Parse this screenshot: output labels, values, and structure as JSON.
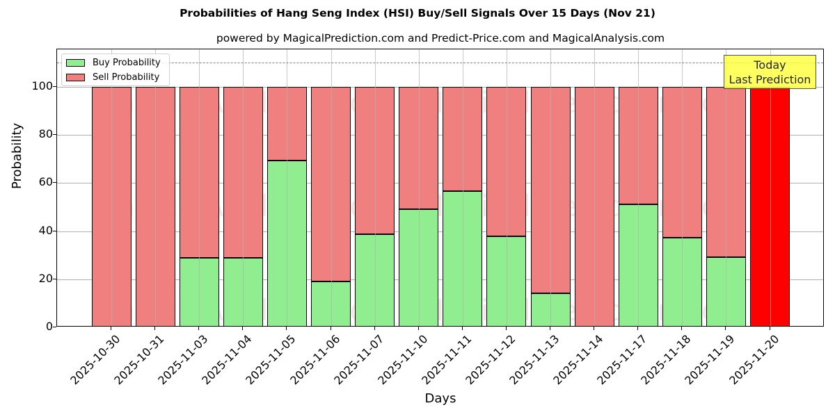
{
  "header": {
    "title": "Probabilities of Hang Seng Index (HSI) Buy/Sell Signals Over 15 Days (Nov 21)",
    "subtitle": "powered by MagicalPrediction.com and Predict-Price.com and MagicalAnalysis.com"
  },
  "legend": {
    "buy_label": "Buy Probability",
    "sell_label": "Sell Probability"
  },
  "annotation": {
    "line1": "Today",
    "line2": "Last Prediction"
  },
  "watermarks": [
    "MagicalAnalysis.com",
    "MagicalPrediction.com"
  ],
  "colors": {
    "buy": "#90ee90",
    "sell": "#f08080",
    "today_sell": "#ff0000",
    "annotation_bg": "#ffff44",
    "threshold_line": "#808080"
  },
  "chart_data": {
    "type": "bar",
    "stacked": true,
    "title": "Probabilities of Hang Seng Index (HSI) Buy/Sell Signals Over 15 Days (Nov 21)",
    "subtitle": "powered by MagicalPrediction.com and Predict-Price.com and MagicalAnalysis.com",
    "xlabel": "Days",
    "ylabel": "Probability",
    "ylim": [
      0,
      115
    ],
    "yticks": [
      0,
      20,
      40,
      60,
      80,
      100
    ],
    "grid": true,
    "legend_position": "upper left",
    "threshold_line": {
      "y": 110,
      "style": "dashed"
    },
    "categories": [
      "2025-10-30",
      "2025-10-31",
      "2025-11-03",
      "2025-11-04",
      "2025-11-05",
      "2025-11-06",
      "2025-11-07",
      "2025-11-10",
      "2025-11-11",
      "2025-11-12",
      "2025-11-13",
      "2025-11-14",
      "2025-11-17",
      "2025-11-18",
      "2025-11-19",
      "2025-11-20"
    ],
    "series": [
      {
        "name": "Buy Probability",
        "values": [
          0,
          0,
          28.8,
          28.8,
          69.4,
          19.2,
          38.6,
          49.0,
          56.6,
          37.9,
          14.2,
          0,
          51.1,
          37.4,
          29.2,
          0
        ]
      },
      {
        "name": "Sell Probability",
        "values": [
          100,
          100,
          71.2,
          71.2,
          30.6,
          80.8,
          61.4,
          51.0,
          43.4,
          62.1,
          85.8,
          100,
          48.9,
          62.6,
          70.8,
          100
        ]
      }
    ],
    "annotations": [
      {
        "text": "Today\nLast Prediction",
        "x": "2025-11-20"
      }
    ]
  }
}
